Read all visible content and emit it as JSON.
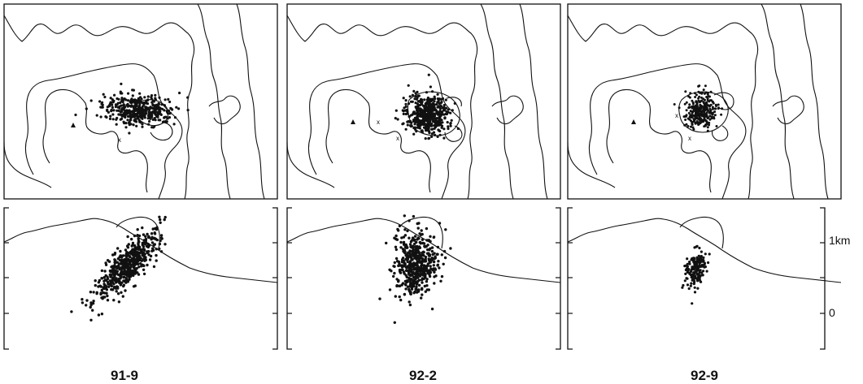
{
  "panels": [
    {
      "id": "p1",
      "label": "91-9"
    },
    {
      "id": "p2",
      "label": "92-2"
    },
    {
      "id": "p3",
      "label": "92-9"
    }
  ],
  "depth_scale": {
    "top_label": "1km",
    "bottom_label": "0"
  }
}
